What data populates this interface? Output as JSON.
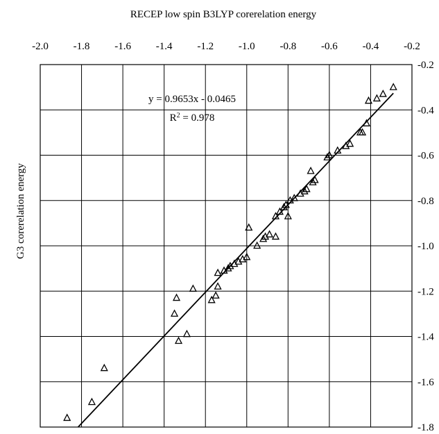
{
  "chart_data": {
    "type": "scatter",
    "title": "RECEP low spin B3LYP corerelation energy",
    "xlabel": "",
    "ylabel": "G3 corerelation energy",
    "x_axis_position": "top",
    "y_axis_position": "right",
    "xlim": [
      -2.0,
      -0.2
    ],
    "ylim": [
      -1.8,
      -0.2
    ],
    "x_ticks": [
      "-2.0",
      "-1.8",
      "-1.6",
      "-1.4",
      "-1.2",
      "-1.0",
      "-0.8",
      "-0.6",
      "-0.4",
      "-0.2"
    ],
    "y_ticks": [
      "-0.2",
      "-0.4",
      "-0.6",
      "-0.8",
      "-1.0",
      "-1.2",
      "-1.4",
      "-1.6",
      "-1.8"
    ],
    "grid": true,
    "marker": "open-triangle",
    "trendline": {
      "slope": 0.9653,
      "intercept": -0.0465
    },
    "annotation": {
      "equation": "y = 0.9653x - 0.0465",
      "r2_prefix": "R",
      "r2_sup": "2",
      "r2_suffix": " = 0.978"
    },
    "series": [
      {
        "points": [
          [
            -1.87,
            -1.76
          ],
          [
            -1.75,
            -1.69
          ],
          [
            -1.69,
            -1.54
          ],
          [
            -1.35,
            -1.3
          ],
          [
            -1.34,
            -1.23
          ],
          [
            -1.33,
            -1.42
          ],
          [
            -1.29,
            -1.39
          ],
          [
            -1.26,
            -1.19
          ],
          [
            -1.17,
            -1.24
          ],
          [
            -1.15,
            -1.22
          ],
          [
            -1.14,
            -1.18
          ],
          [
            -1.14,
            -1.12
          ],
          [
            -1.11,
            -1.11
          ],
          [
            -1.09,
            -1.1
          ],
          [
            -1.08,
            -1.09
          ],
          [
            -1.06,
            -1.08
          ],
          [
            -1.04,
            -1.07
          ],
          [
            -1.02,
            -1.06
          ],
          [
            -1.0,
            -1.05
          ],
          [
            -0.99,
            -0.92
          ],
          [
            -0.95,
            -1.0
          ],
          [
            -0.92,
            -0.97
          ],
          [
            -0.91,
            -0.96
          ],
          [
            -0.89,
            -0.95
          ],
          [
            -0.86,
            -0.96
          ],
          [
            -0.86,
            -0.87
          ],
          [
            -0.84,
            -0.85
          ],
          [
            -0.82,
            -0.83
          ],
          [
            -0.81,
            -0.82
          ],
          [
            -0.8,
            -0.87
          ],
          [
            -0.79,
            -0.8
          ],
          [
            -0.77,
            -0.79
          ],
          [
            -0.74,
            -0.77
          ],
          [
            -0.72,
            -0.76
          ],
          [
            -0.71,
            -0.75
          ],
          [
            -0.69,
            -0.67
          ],
          [
            -0.68,
            -0.72
          ],
          [
            -0.67,
            -0.71
          ],
          [
            -0.61,
            -0.61
          ],
          [
            -0.6,
            -0.6
          ],
          [
            -0.56,
            -0.58
          ],
          [
            -0.52,
            -0.56
          ],
          [
            -0.5,
            -0.55
          ],
          [
            -0.45,
            -0.5
          ],
          [
            -0.44,
            -0.5
          ],
          [
            -0.42,
            -0.46
          ],
          [
            -0.41,
            -0.36
          ],
          [
            -0.37,
            -0.35
          ],
          [
            -0.34,
            -0.33
          ],
          [
            -0.29,
            -0.3
          ]
        ]
      }
    ]
  }
}
